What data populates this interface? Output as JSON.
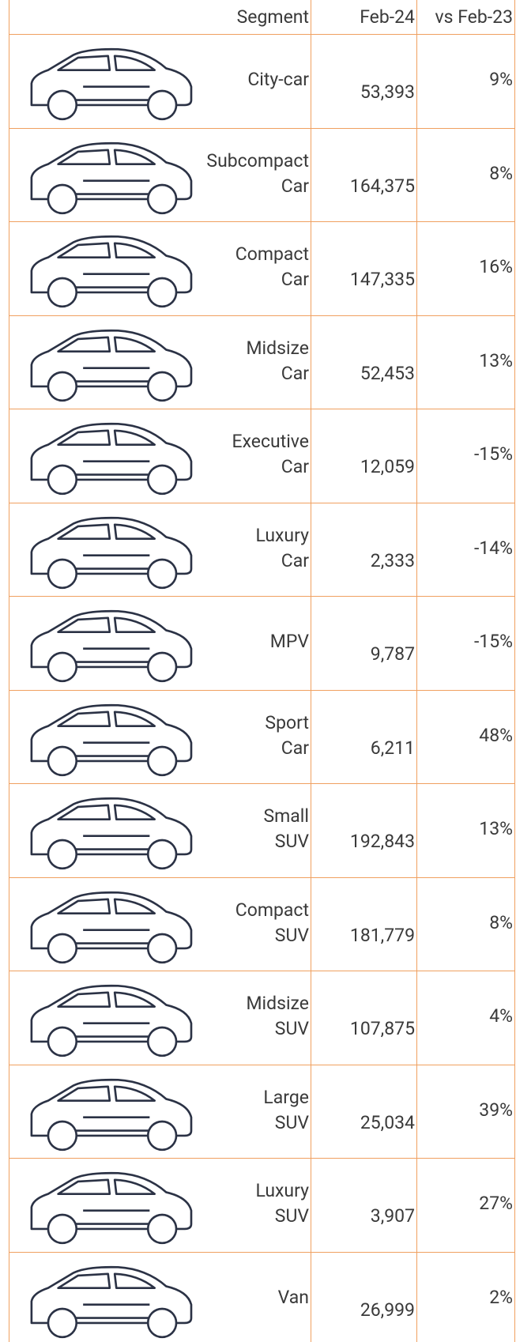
{
  "table": {
    "header": [
      "Segment",
      "Feb-24",
      "vs Feb-23"
    ],
    "rows": [
      [
        "City-car",
        "53,393",
        "9%"
      ],
      [
        "Subcompact\nCar",
        "164,375",
        "8%"
      ],
      [
        "Compact\nCar",
        "147,335",
        "16%"
      ],
      [
        "Midsize\nCar",
        "52,453",
        "13%"
      ],
      [
        "Executive\nCar",
        "12,059",
        "-15%"
      ],
      [
        "Luxury\nCar",
        "2,333",
        "-14%"
      ],
      [
        "MPV",
        "9,787",
        "-15%"
      ],
      [
        "Sport\nCar",
        "6,211",
        "48%"
      ],
      [
        "Small\nSUV",
        "192,843",
        "13%"
      ],
      [
        "Compact\nSUV",
        "181,779",
        "8%"
      ],
      [
        "Midsize\nSUV",
        "107,875",
        "4%"
      ],
      [
        "Large\nSUV",
        "25,034",
        "39%"
      ],
      [
        "Luxury\nSUV",
        "3,907",
        "27%"
      ],
      [
        "Van",
        "26,999",
        "2%"
      ]
    ]
  }
}
